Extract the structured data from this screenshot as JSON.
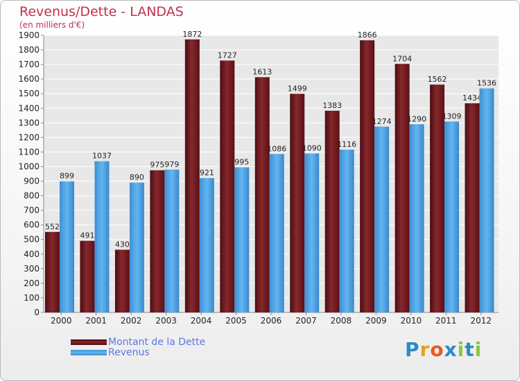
{
  "title": "Revenus/Dette - LANDAS",
  "subtitle": "(en milliers d'€)",
  "colors": {
    "debt": "#6e1a20",
    "revenue": "#4aa3e6",
    "grid": "#ffffff",
    "plot_bg": "#e8e8e8",
    "axis_text": "#222222",
    "title": "#c0304f",
    "legend_text": "#5a78e6"
  },
  "chart_data": {
    "type": "bar",
    "title": "Revenus/Dette - LANDAS",
    "subtitle": "(en milliers d'€)",
    "categories": [
      "2000",
      "2001",
      "2002",
      "2003",
      "2004",
      "2005",
      "2006",
      "2007",
      "2008",
      "2009",
      "2010",
      "2011",
      "2012"
    ],
    "series": [
      {
        "name": "Montant de la Dette",
        "values": [
          552,
          491,
          430,
          975,
          1872,
          1727,
          1613,
          1499,
          1383,
          1866,
          1704,
          1562,
          1434
        ]
      },
      {
        "name": "Revenus",
        "values": [
          899,
          1037,
          890,
          979,
          921,
          995,
          1086,
          1090,
          1116,
          1274,
          1290,
          1309,
          1536
        ]
      }
    ],
    "yticks": [
      0,
      100,
      200,
      300,
      400,
      500,
      600,
      700,
      800,
      900,
      1000,
      1100,
      1200,
      1300,
      1400,
      1500,
      1600,
      1700,
      1800,
      1900
    ],
    "ylim": [
      0,
      1900
    ],
    "grid": true,
    "legend_position": "bottom-left"
  },
  "legend": {
    "debt_label": "Montant de la Dette",
    "revenue_label": "Revenus"
  },
  "logo": {
    "text": "Proxiti",
    "letter_colors": [
      "#2a8ac8",
      "#e8a21c",
      "#e85a1c",
      "#2a8ac8",
      "#8cc63f",
      "#2a8ac8",
      "#8cc63f"
    ]
  }
}
